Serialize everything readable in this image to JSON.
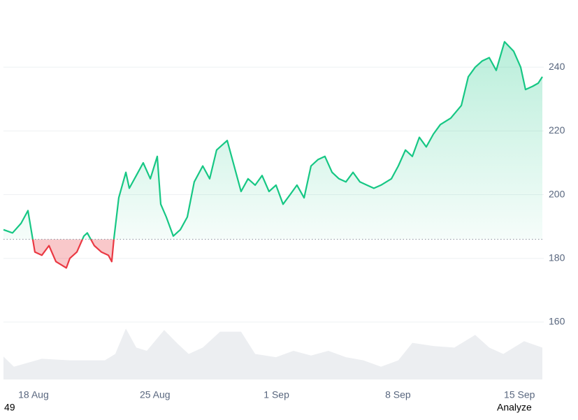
{
  "chart_data": {
    "type": "line",
    "x": [
      16.27,
      16.79,
      17.28,
      17.68,
      18.08,
      18.48,
      18.89,
      19.29,
      19.89,
      20.09,
      20.5,
      20.9,
      21.1,
      21.5,
      21.91,
      22.31,
      22.51,
      22.63,
      22.91,
      23.32,
      23.52,
      23.92,
      24.32,
      24.73,
      25.13,
      25.33,
      25.65,
      26.05,
      26.46,
      26.86,
      27.26,
      27.75,
      28.15,
      28.55,
      29.16,
      29.56,
      29.96,
      30.36,
      30.77,
      31.17,
      31.57,
      31.97,
      32.38,
      32.78,
      33.18,
      33.59,
      33.99,
      34.39,
      34.79,
      35.2,
      35.6,
      36.0,
      36.41,
      36.81,
      37.21,
      37.61,
      38.02,
      38.62,
      39.02,
      39.43,
      39.83,
      40.23,
      40.63,
      41.04,
      41.44,
      42.04,
      42.65,
      43.05,
      43.45,
      43.86,
      44.26,
      44.66,
      45.14,
      45.67,
      46.07,
      46.35,
      46.76,
      47.08,
      47.32
    ],
    "values": [
      189,
      188,
      191,
      195,
      182,
      181,
      184,
      179,
      177,
      180,
      182,
      187,
      188,
      184,
      182,
      181,
      179,
      186,
      199,
      207,
      202,
      206,
      210,
      205,
      212,
      197,
      193,
      187,
      189,
      193,
      204,
      209,
      205,
      214,
      217,
      209,
      201,
      205,
      203,
      206,
      201,
      203,
      197,
      200,
      203,
      199,
      209,
      211,
      212,
      207,
      205,
      204,
      207,
      204,
      203,
      202,
      203,
      205,
      209,
      214,
      212,
      218,
      215,
      219,
      222,
      224,
      228,
      237,
      240,
      242,
      243,
      239,
      248,
      245,
      240,
      233,
      234,
      235,
      237
    ],
    "baseline": 186,
    "up_color": "#16c784",
    "down_color": "#ea3943",
    "volume": {
      "x": [
        16.27,
        16.87,
        18.48,
        20.09,
        22.11,
        22.71,
        23.32,
        23.92,
        24.53,
        25.53,
        26.34,
        26.94,
        27.75,
        28.75,
        29.96,
        30.77,
        31.97,
        32.98,
        33.99,
        34.99,
        36.0,
        37.01,
        38.02,
        39.02,
        39.83,
        41.04,
        42.25,
        43.45,
        44.26,
        45.07,
        46.27,
        47.32
      ],
      "values": [
        149.2,
        146,
        148.5,
        148,
        148,
        150,
        158,
        152,
        151,
        157.5,
        153,
        150,
        152,
        157,
        157,
        150,
        149,
        151,
        149.5,
        151,
        149,
        148,
        146,
        148,
        153.5,
        152.5,
        152,
        156,
        152,
        150,
        154,
        152
      ],
      "color": "#eceef1"
    },
    "xlim": [
      16.27,
      47.4
    ],
    "ylim": [
      142,
      260
    ],
    "xticks": [
      {
        "value": 18,
        "label": "18 Aug"
      },
      {
        "value": 25,
        "label": "25 Aug"
      },
      {
        "value": 32,
        "label": "1 Sep"
      },
      {
        "value": 39,
        "label": "8 Sep"
      },
      {
        "value": 46,
        "label": "15 Sep"
      }
    ],
    "yticks": [
      160,
      180,
      200,
      220,
      240
    ],
    "grid": true
  },
  "footer": {
    "left": "49",
    "right": "Analyze"
  }
}
